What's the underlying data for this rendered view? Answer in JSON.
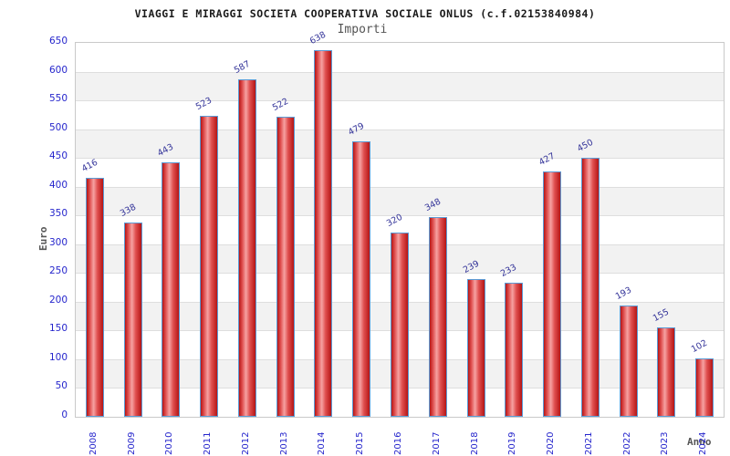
{
  "header": {
    "title": "VIAGGI E MIRAGGI SOCIETA COOPERATIVA SOCIALE ONLUS (c.f.02153840984)",
    "subtitle": "Importi"
  },
  "chart_data": {
    "type": "bar",
    "title": "VIAGGI E MIRAGGI SOCIETA COOPERATIVA SOCIALE ONLUS (c.f.02153840984)",
    "subtitle": "Importi",
    "xlabel": "Anno",
    "ylabel": "Euro",
    "categories": [
      "2008",
      "2009",
      "2010",
      "2011",
      "2012",
      "2013",
      "2014",
      "2015",
      "2016",
      "2017",
      "2018",
      "2019",
      "2020",
      "2021",
      "2022",
      "2023",
      "2024"
    ],
    "values": [
      416,
      338,
      443,
      523,
      587,
      522,
      638,
      479,
      320,
      348,
      239,
      233,
      427,
      450,
      193,
      155,
      102
    ],
    "ylim": [
      0,
      650
    ],
    "yticks": [
      0,
      50,
      100,
      150,
      200,
      250,
      300,
      350,
      400,
      450,
      500,
      550,
      600,
      650
    ],
    "grid": true,
    "legend": "none",
    "colors": {
      "bar_dark": "#b51515",
      "bar_mid": "#e05050",
      "bar_highlight": "#f6a2a2",
      "bar_border": "#5b9bd5",
      "axis_tick_label": "#2525cc",
      "value_label": "#333399",
      "band_gray": "#f2f2f2",
      "band_white": "#ffffff",
      "grid_line": "#dedede",
      "frame": "#c9c9c9",
      "axis_title": "#555555",
      "title_color": "#1a1a1a"
    }
  }
}
